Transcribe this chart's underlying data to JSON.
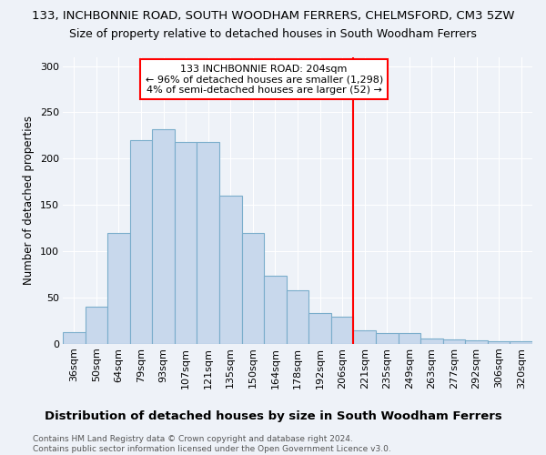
{
  "title": "133, INCHBONNIE ROAD, SOUTH WOODHAM FERRERS, CHELMSFORD, CM3 5ZW",
  "subtitle": "Size of property relative to detached houses in South Woodham Ferrers",
  "xlabel": "Distribution of detached houses by size in South Woodham Ferrers",
  "ylabel": "Number of detached properties",
  "footer_line1": "Contains HM Land Registry data © Crown copyright and database right 2024.",
  "footer_line2": "Contains public sector information licensed under the Open Government Licence v3.0.",
  "categories": [
    "36sqm",
    "50sqm",
    "64sqm",
    "79sqm",
    "93sqm",
    "107sqm",
    "121sqm",
    "135sqm",
    "150sqm",
    "164sqm",
    "178sqm",
    "192sqm",
    "206sqm",
    "221sqm",
    "235sqm",
    "249sqm",
    "263sqm",
    "277sqm",
    "292sqm",
    "306sqm",
    "320sqm"
  ],
  "values": [
    12,
    40,
    120,
    220,
    232,
    218,
    218,
    160,
    120,
    73,
    58,
    33,
    29,
    14,
    11,
    11,
    5,
    4,
    3,
    2,
    2
  ],
  "bar_color": "#c8d8ec",
  "bar_edge_color": "#7aadcb",
  "vline_index": 12,
  "vline_color": "red",
  "annotation_text": "133 INCHBONNIE ROAD: 204sqm\n← 96% of detached houses are smaller (1,298)\n4% of semi-detached houses are larger (52) →",
  "annotation_facecolor": "white",
  "annotation_edgecolor": "red",
  "ylim_max": 310,
  "yticks": [
    0,
    50,
    100,
    150,
    200,
    250,
    300
  ],
  "background_color": "#eef2f8",
  "grid_color": "white",
  "title_fontsize": 9.5,
  "subtitle_fontsize": 9,
  "xlabel_fontsize": 9.5,
  "ylabel_fontsize": 8.5,
  "tick_fontsize": 8,
  "annotation_fontsize": 8,
  "footer_fontsize": 6.5
}
